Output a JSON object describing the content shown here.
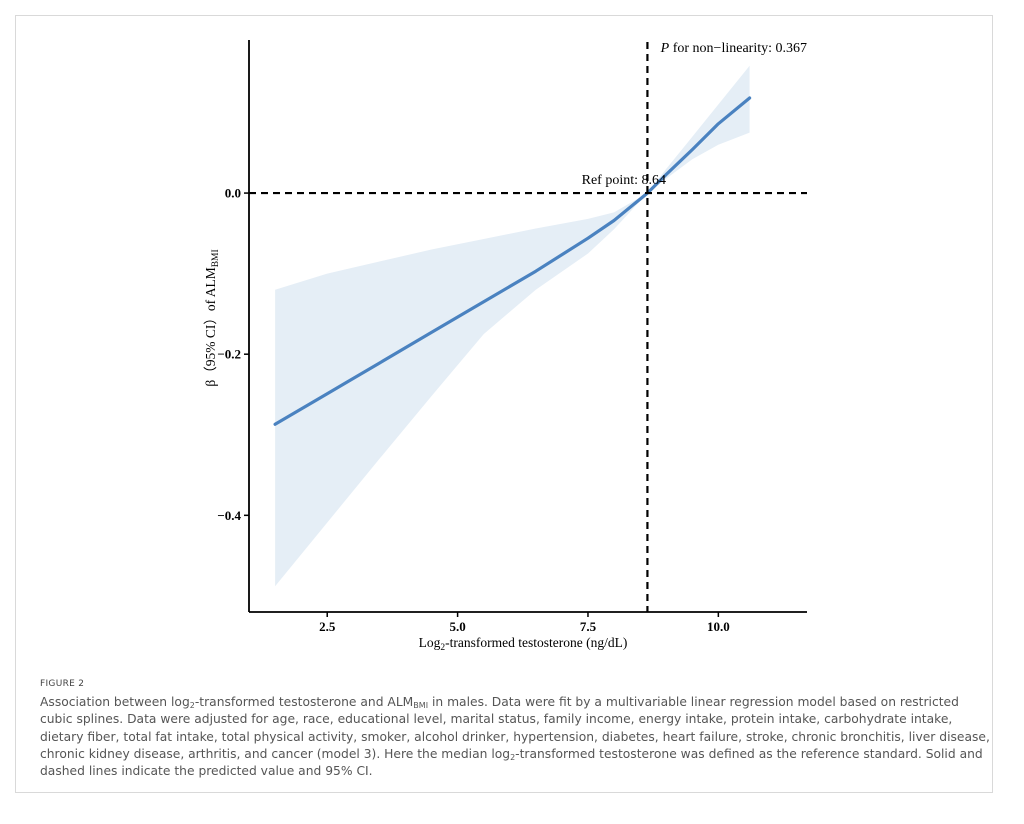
{
  "chart_data": {
    "type": "line",
    "xlabel_prefix": "Log",
    "xlabel_sub": "2",
    "xlabel_rest": "-transformed testosterone (ng/dL)",
    "ylabel_prefix": "β（95% CI）of ALM",
    "ylabel_sub": "BMI",
    "x_ticks": [
      2.5,
      5.0,
      7.5,
      10.0
    ],
    "x_tick_labels": [
      "2.5",
      "5.0",
      "7.5",
      "10.0"
    ],
    "y_ticks": [
      0.0,
      -0.2,
      -0.4
    ],
    "y_tick_labels": [
      "0.0",
      "−0.2",
      "−0.4"
    ],
    "xlim": [
      1.0,
      11.7
    ],
    "ylim": [
      -0.52,
      0.19
    ],
    "reference_x": 8.64,
    "reference_y": 0.0,
    "ref_label_text": "Ref point:",
    "ref_value_text": "8.64",
    "nonlin_p_text": "P",
    "nonlin_rest_text": " for non−linearity:",
    "nonlin_value_text": "0.367",
    "series": [
      {
        "x": [
          1.5,
          2.5,
          3.5,
          4.5,
          5.5,
          6.5,
          7.5,
          8.0,
          8.64,
          9.0,
          9.5,
          10.0,
          10.6
        ],
        "y": [
          -0.287,
          -0.249,
          -0.211,
          -0.173,
          -0.135,
          -0.097,
          -0.056,
          -0.034,
          0.0,
          0.023,
          0.054,
          0.086,
          0.118
        ],
        "lower": [
          -0.488,
          -0.409,
          -0.33,
          -0.252,
          -0.175,
          -0.12,
          -0.075,
          -0.045,
          0.0,
          0.018,
          0.042,
          0.06,
          0.075
        ],
        "upper": [
          -0.12,
          -0.1,
          -0.085,
          -0.07,
          -0.057,
          -0.044,
          -0.032,
          -0.024,
          0.0,
          0.03,
          0.07,
          0.11,
          0.158
        ]
      }
    ],
    "colors": {
      "line": "#4a82c0",
      "band": "#e5eef6",
      "axis": "#000000"
    }
  },
  "caption": {
    "figure_label": "FIGURE 2",
    "p1": "Association between log",
    "p1_sub": "2",
    "p2": "-transformed testosterone and ALM",
    "p2_sub": "BMI",
    "p3": " in males. Data were fit by a multivariable linear regression model based on restricted cubic splines. Data were adjusted for age, race, educational level, marital status, family income, energy intake, protein intake, carbohydrate intake, dietary fiber, total fat intake, total physical activity, smoker, alcohol drinker, hypertension, diabetes, heart failure, stroke, chronic bronchitis, liver disease, chronic kidney disease, arthritis, and cancer (model 3). Here the median log",
    "p3_sub": "2",
    "p4": "-transformed testosterone was defined as the reference standard. Solid and dashed lines indicate the predicted value and 95% CI."
  }
}
